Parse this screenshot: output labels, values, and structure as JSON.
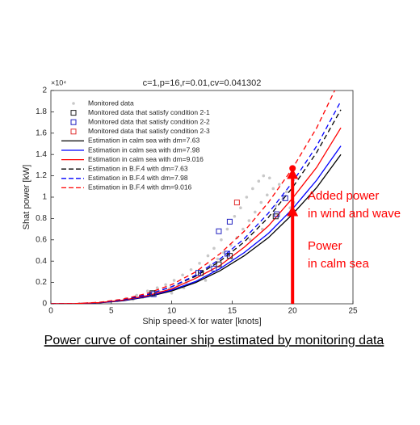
{
  "chart_data": {
    "type": "line",
    "title": "c=1,p=16,r=0.01,cv=0.041302",
    "y_exponent": "×10⁴",
    "x_label": "Ship speed-X for water [knots]",
    "y_label": "Shat power [kW]",
    "caption": "Power curve of container ship estimated by monitoring data",
    "xlim": [
      0,
      25
    ],
    "ylim": [
      0,
      2
    ],
    "xticks": [
      0,
      5,
      10,
      15,
      20,
      25
    ],
    "yticks": [
      0,
      0.2,
      0.4,
      0.6,
      0.8,
      1,
      1.2,
      1.4,
      1.6,
      1.8,
      2
    ],
    "grid": false,
    "legend": "upper left",
    "series": [
      {
        "name": "Monitored data",
        "kind": "scatter",
        "marker": "dot",
        "color": "#c8c8c8",
        "x": [
          5.5,
          6.2,
          6.8,
          7.1,
          7.6,
          8.0,
          8.3,
          8.8,
          9.1,
          9.5,
          9.8,
          10.2,
          10.5,
          10.9,
          11.2,
          11.6,
          11.9,
          12.3,
          12.6,
          13.0,
          13.2,
          13.5,
          13.8,
          14.1,
          14.3,
          14.6,
          14.9,
          15.2,
          15.4,
          15.7,
          15.9,
          16.2,
          16.4,
          16.7,
          16.9,
          17.2,
          17.4,
          17.6,
          17.9,
          18.1,
          18.4,
          18.6,
          18.9,
          19.2,
          19.5,
          19.8,
          20.1,
          12.8,
          15.0,
          16.5,
          17.5,
          10.0,
          11.0
        ],
        "values": [
          0.03,
          0.05,
          0.04,
          0.08,
          0.06,
          0.12,
          0.09,
          0.15,
          0.11,
          0.18,
          0.14,
          0.22,
          0.17,
          0.27,
          0.2,
          0.32,
          0.25,
          0.38,
          0.3,
          0.45,
          0.36,
          0.52,
          0.42,
          0.6,
          0.48,
          0.7,
          0.55,
          0.82,
          0.62,
          0.9,
          0.7,
          1.0,
          0.78,
          1.08,
          0.86,
          1.15,
          0.95,
          1.2,
          1.02,
          1.18,
          1.08,
          0.92,
          1.12,
          0.98,
          1.05,
          0.9,
          0.95,
          0.22,
          0.42,
          0.6,
          0.7,
          0.1,
          0.15
        ]
      },
      {
        "name": "Monitored data that satisfy condition 2-1",
        "kind": "scatter",
        "marker": "square",
        "color": "#202020",
        "x": [
          8.4,
          12.4,
          13.9,
          14.8,
          18.6
        ],
        "values": [
          0.1,
          0.29,
          0.37,
          0.45,
          0.82
        ]
      },
      {
        "name": "Monitored data that satisfy condition 2-2",
        "kind": "scatter",
        "marker": "square",
        "color": "#2020c0",
        "x": [
          8.5,
          12.2,
          13.5,
          13.9,
          14.8,
          14.6,
          18.7,
          19.4
        ],
        "values": [
          0.09,
          0.29,
          0.33,
          0.68,
          0.77,
          0.47,
          0.84,
          0.99
        ]
      },
      {
        "name": "Monitored data that satisfy condition 2-3",
        "kind": "scatter",
        "marker": "square",
        "color": "#e03030",
        "x": [
          15.4
        ],
        "values": [
          0.95
        ]
      },
      {
        "name": "Estimation in calm sea with dm=7.63",
        "kind": "line",
        "dashed": false,
        "color": "#000000",
        "x": [
          0,
          2,
          4,
          6,
          8,
          10,
          12,
          14,
          16,
          18,
          20,
          22,
          24
        ],
        "values": [
          0,
          0.0013,
          0.009,
          0.029,
          0.065,
          0.12,
          0.2,
          0.31,
          0.45,
          0.62,
          0.84,
          1.09,
          1.4
        ]
      },
      {
        "name": "Estimation in calm sea with dm=7.98",
        "kind": "line",
        "dashed": false,
        "color": "#0000ff",
        "x": [
          0,
          2,
          4,
          6,
          8,
          10,
          12,
          14,
          16,
          18,
          20,
          22,
          24
        ],
        "values": [
          0,
          0.001,
          0.01,
          0.031,
          0.069,
          0.13,
          0.21,
          0.33,
          0.48,
          0.66,
          0.89,
          1.16,
          1.48
        ]
      },
      {
        "name": "Estimation in calm sea with dm=9.016",
        "kind": "line",
        "dashed": false,
        "color": "#ff0000",
        "x": [
          0,
          2,
          4,
          6,
          8,
          10,
          12,
          14,
          16,
          18,
          20,
          22,
          24
        ],
        "values": [
          0,
          0.002,
          0.011,
          0.035,
          0.077,
          0.14,
          0.24,
          0.36,
          0.53,
          0.73,
          0.99,
          1.28,
          1.65
        ]
      },
      {
        "name": "Estimation in B.F.4 with dm=7.63",
        "kind": "line",
        "dashed": true,
        "color": "#000000",
        "x": [
          0,
          2,
          4,
          6,
          8,
          10,
          12,
          14,
          16,
          18,
          20,
          22,
          24
        ],
        "values": [
          0,
          0.002,
          0.012,
          0.038,
          0.085,
          0.16,
          0.26,
          0.4,
          0.58,
          0.81,
          1.09,
          1.42,
          1.82
        ]
      },
      {
        "name": "Estimation in B.F.4 with dm=7.98",
        "kind": "line",
        "dashed": true,
        "color": "#0000ff",
        "x": [
          0,
          2,
          4,
          6,
          8,
          10,
          12,
          14,
          16,
          18,
          20,
          22,
          24
        ],
        "values": [
          0,
          0.002,
          0.012,
          0.04,
          0.088,
          0.16,
          0.27,
          0.42,
          0.61,
          0.85,
          1.14,
          1.48,
          1.9
        ]
      },
      {
        "name": "Estimation in B.F.4 with dm=9.016",
        "kind": "line",
        "dashed": true,
        "color": "#ff0000",
        "x": [
          0,
          2,
          4,
          6,
          8,
          10,
          12,
          14,
          16,
          18,
          20,
          22,
          24
        ],
        "values": [
          0,
          0.002,
          0.014,
          0.044,
          0.099,
          0.18,
          0.3,
          0.47,
          0.68,
          0.95,
          1.27,
          1.65,
          2.12
        ]
      }
    ],
    "arrows": [
      {
        "x": 20,
        "from": 0,
        "to": 0.92,
        "color": "#ff0000"
      },
      {
        "x": 20,
        "from": 0.86,
        "to": 1.27,
        "color": "#ff0000"
      }
    ],
    "annotations": [
      {
        "lines": [
          "Added power",
          "in wind and wave"
        ],
        "color": "#ff0000"
      },
      {
        "lines": [
          "Power",
          "in calm sea"
        ],
        "color": "#ff0000"
      }
    ]
  }
}
